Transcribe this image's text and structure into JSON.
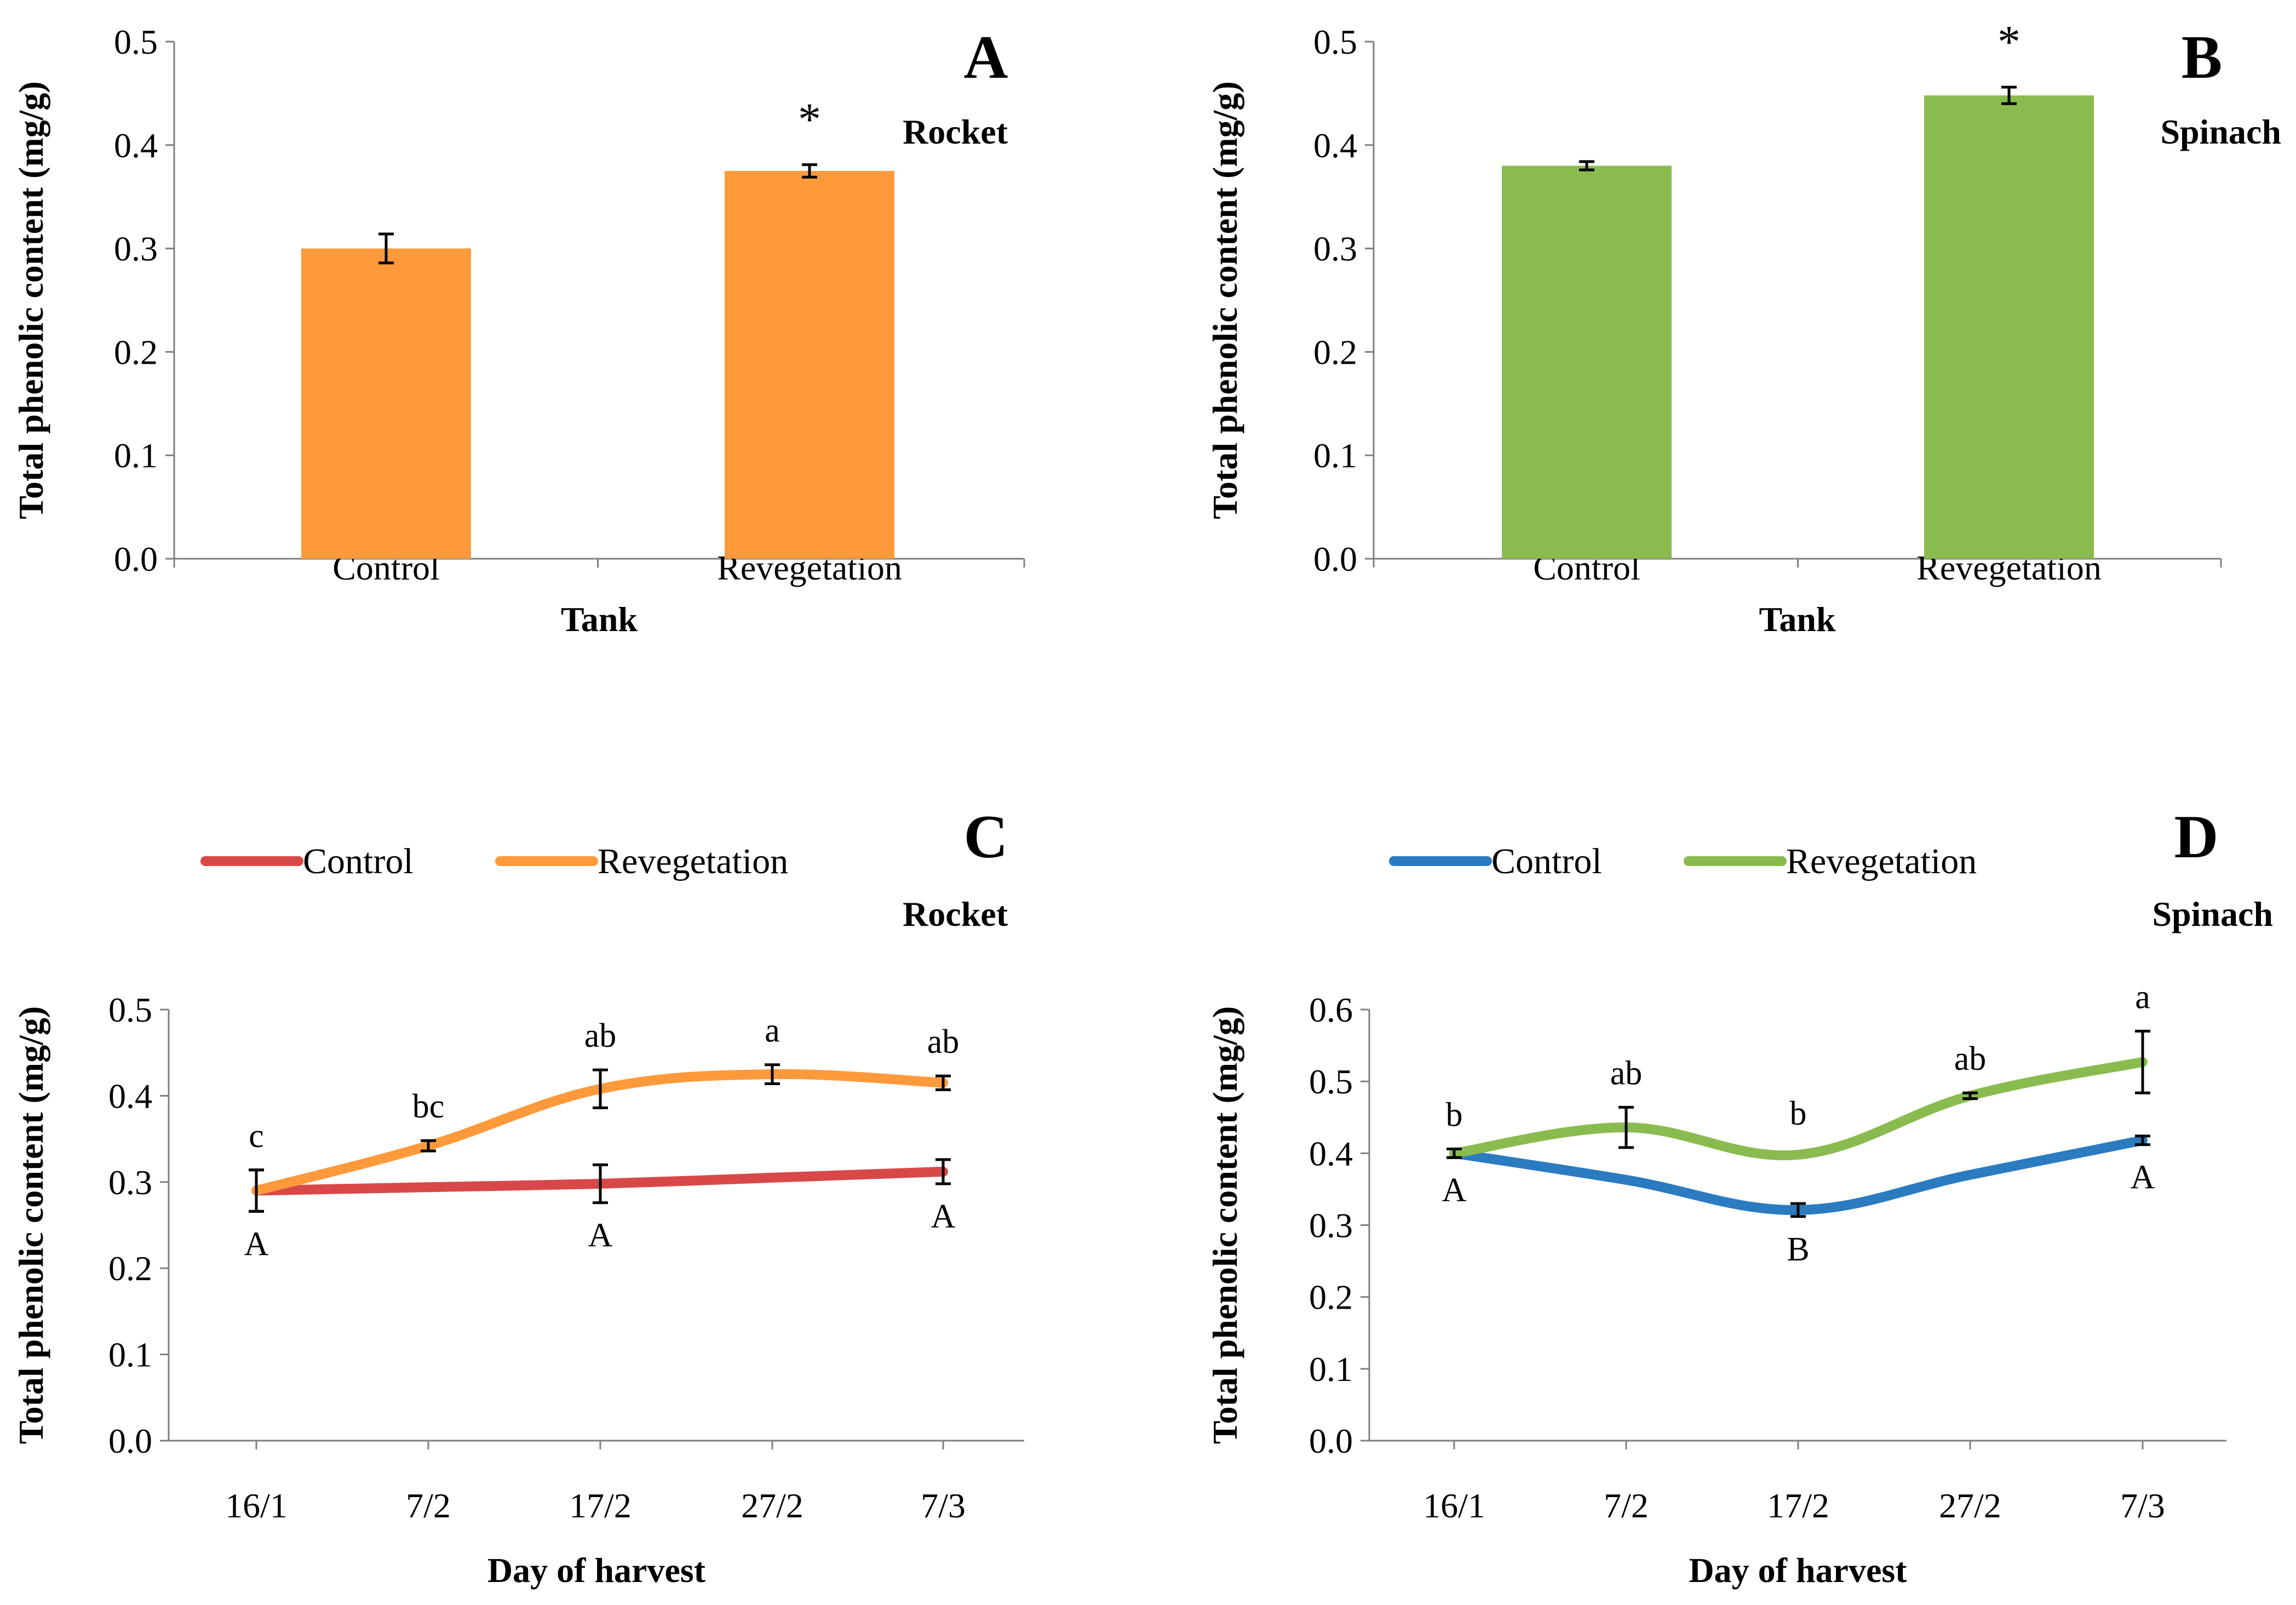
{
  "chart_data": [
    {
      "id": "A",
      "type": "bar",
      "panel_label": "A",
      "subtitle": "Rocket",
      "xlabel": "Tank",
      "ylabel": "Total phenolic content (mg/g)",
      "ylim": [
        0,
        0.5
      ],
      "yticks": [
        "0.0",
        "0.1",
        "0.2",
        "0.3",
        "0.4",
        "0.5"
      ],
      "categories": [
        "Control",
        "Revegetation"
      ],
      "values": [
        0.3,
        0.375
      ],
      "errors": [
        0.014,
        0.006
      ],
      "bar_color": "#FF9A3C",
      "annotations": [
        "",
        "*"
      ]
    },
    {
      "id": "B",
      "type": "bar",
      "panel_label": "B",
      "subtitle": "Spinach",
      "xlabel": "Tank",
      "ylabel": "Total phenolic content (mg/g)",
      "ylim": [
        0,
        0.5
      ],
      "yticks": [
        "0.0",
        "0.1",
        "0.2",
        "0.3",
        "0.4",
        "0.5"
      ],
      "categories": [
        "Control",
        "Revegetation"
      ],
      "values": [
        0.38,
        0.448
      ],
      "errors": [
        0.004,
        0.008
      ],
      "bar_color": "#8ABB4F",
      "annotations": [
        "",
        "*"
      ]
    },
    {
      "id": "C",
      "type": "line",
      "panel_label": "C",
      "subtitle": "Rocket",
      "xlabel": "Day of harvest",
      "ylabel": "Total phenolic content (mg/g)",
      "ylim": [
        0,
        0.5
      ],
      "yticks": [
        "0.0",
        "0.1",
        "0.2",
        "0.3",
        "0.4",
        "0.5"
      ],
      "categories": [
        "16/1",
        "7/2",
        "17/2",
        "27/2",
        "7/3"
      ],
      "series": [
        {
          "name": "Control",
          "color": "#D94848",
          "values": [
            0.29,
            0.294,
            0.298,
            0.305,
            0.312
          ],
          "errors": [
            0.024,
            null,
            0.022,
            null,
            0.014
          ],
          "letters": [
            "A",
            "",
            "A",
            "",
            "A"
          ]
        },
        {
          "name": "Revegetation",
          "color": "#FF9A3C",
          "values": [
            0.29,
            0.342,
            0.408,
            0.425,
            0.415
          ],
          "errors": [
            0.024,
            0.006,
            0.022,
            0.011,
            0.008
          ],
          "letters": [
            "c",
            "bc",
            "ab",
            "a",
            "ab"
          ]
        }
      ]
    },
    {
      "id": "D",
      "type": "line",
      "panel_label": "D",
      "subtitle": "Spinach",
      "xlabel": "Day of harvest",
      "ylabel": "Total phenolic content (mg/g)",
      "ylim": [
        0,
        0.6
      ],
      "yticks": [
        "0.0",
        "0.1",
        "0.2",
        "0.3",
        "0.4",
        "0.5",
        "0.6"
      ],
      "categories": [
        "16/1",
        "7/2",
        "17/2",
        "27/2",
        "7/3"
      ],
      "series": [
        {
          "name": "Control",
          "color": "#2B7BC0",
          "values": [
            0.4,
            0.363,
            0.321,
            0.37,
            0.418
          ],
          "errors": [
            0.006,
            null,
            0.009,
            null,
            0.006
          ],
          "letters": [
            "A",
            "",
            "B",
            "",
            "A"
          ]
        },
        {
          "name": "Revegetation",
          "color": "#8ABB4F",
          "values": [
            0.4,
            0.436,
            0.398,
            0.48,
            0.527
          ],
          "errors": [
            0.006,
            0.028,
            null,
            0.004,
            0.043
          ],
          "letters": [
            "b",
            "ab",
            "b",
            "ab",
            "a"
          ]
        }
      ]
    }
  ]
}
